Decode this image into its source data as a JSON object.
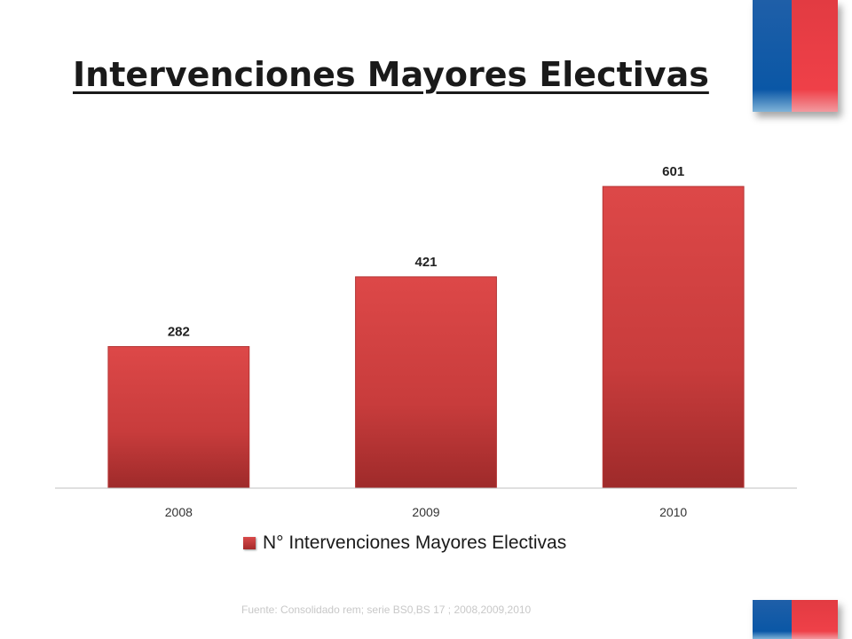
{
  "title": "Intervenciones Mayores Electivas",
  "source": "Fuente: Consolidado rem; serie BS0,BS 17 ; 2008,2009,2010",
  "colors": {
    "bar": "#d64545",
    "bar_dark": "#9e2a2a",
    "flag_blue": "#0a57a6",
    "flag_red": "#ef4048"
  },
  "chart_data": {
    "type": "bar",
    "categories": [
      "2008",
      "2009",
      "2010"
    ],
    "series": [
      {
        "name": "N° Intervenciones Mayores Electivas",
        "values": [
          282,
          421,
          601
        ]
      }
    ],
    "data_labels": [
      "282",
      "421",
      "601"
    ],
    "ylim": [
      0,
      700
    ],
    "grid": false,
    "legend_position": "bottom"
  }
}
